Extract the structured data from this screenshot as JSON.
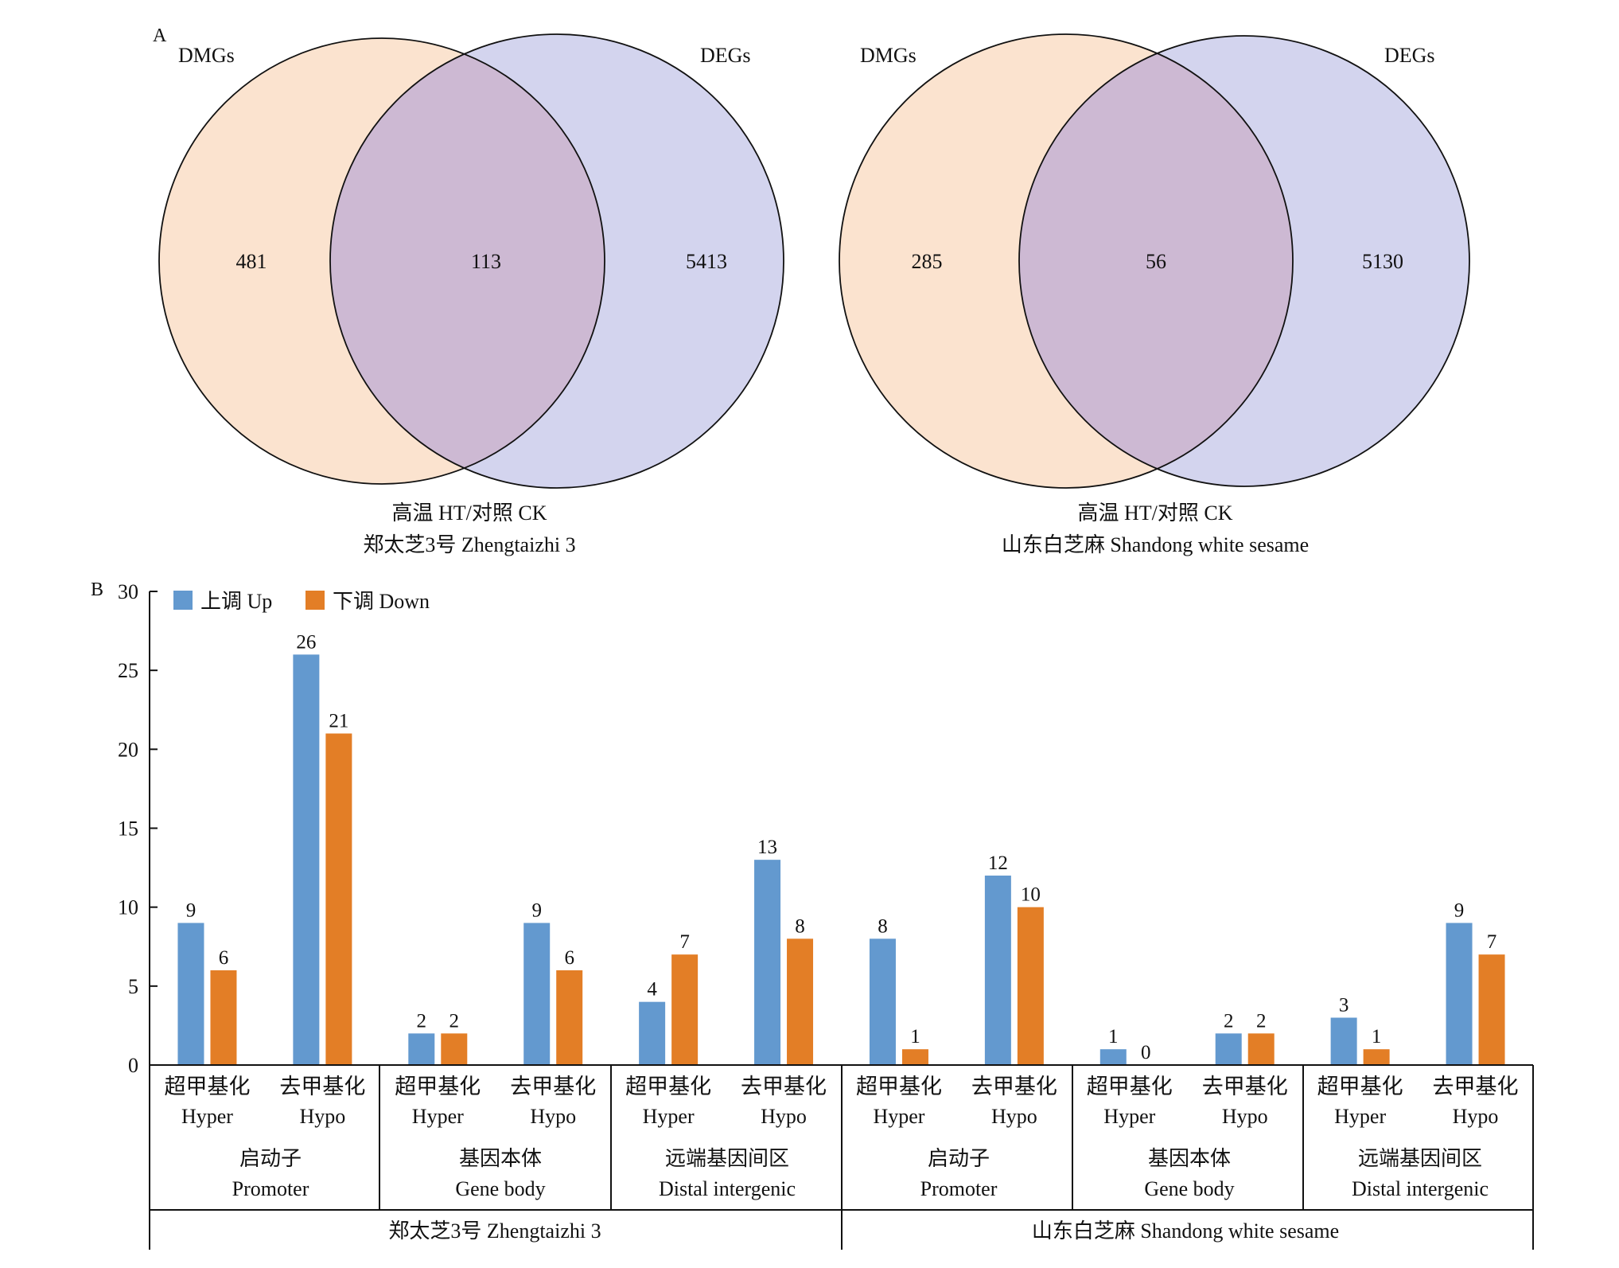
{
  "panel_a": {
    "label": "A",
    "set_left": "DMGs",
    "set_right": "DEGs",
    "venns": [
      {
        "left_only": "481",
        "both": "113",
        "right_only": "5413",
        "caption1": "高温 HT/对照 CK",
        "caption2": "郑太芝3号 Zhengtaizhi 3"
      },
      {
        "left_only": "285",
        "both": "56",
        "right_only": "5130",
        "caption1": "高温 HT/对照 CK",
        "caption2": "山东白芝麻 Shandong white sesame"
      }
    ],
    "colors": {
      "left": "#fbe3cf",
      "right": "#d3d4ee",
      "overlap": "#cdb9d3",
      "stroke": "#111111"
    }
  },
  "panel_b": {
    "label": "B",
    "legend": [
      {
        "label": "上调 Up",
        "color": "#6399cf"
      },
      {
        "label": "下调 Down",
        "color": "#e37e26"
      }
    ],
    "methylation_types": [
      {
        "cn": "超甲基化",
        "en": "Hyper"
      },
      {
        "cn": "去甲基化",
        "en": "Hypo"
      }
    ],
    "regions": [
      {
        "cn": "启动子",
        "en": "Promoter"
      },
      {
        "cn": "基因本体",
        "en": "Gene body"
      },
      {
        "cn": "远端基因间区",
        "en": "Distal intergenic"
      }
    ],
    "cultivars": [
      "郑太芝3号 Zhengtaizhi 3",
      "山东白芝麻 Shandong white sesame"
    ]
  },
  "chart_data": {
    "type": "bar",
    "title": "",
    "xlabel": "",
    "ylabel": "",
    "ylim": [
      0,
      30
    ],
    "yticks": [
      0,
      5,
      10,
      15,
      20,
      25,
      30
    ],
    "grid": false,
    "legend_position": "top-left",
    "categories": [
      "超甲基化 Hyper",
      "去甲基化 Hypo",
      "超甲基化 Hyper",
      "去甲基化 Hypo",
      "超甲基化 Hyper",
      "去甲基化 Hypo",
      "超甲基化 Hyper",
      "去甲基化 Hypo",
      "超甲基化 Hyper",
      "去甲基化 Hypo",
      "超甲基化 Hyper",
      "去甲基化 Hypo"
    ],
    "series": [
      {
        "name": "上调 Up",
        "values": [
          9,
          26,
          2,
          9,
          4,
          13,
          8,
          12,
          1,
          2,
          3,
          9
        ]
      },
      {
        "name": "下调 Down",
        "values": [
          6,
          21,
          2,
          6,
          7,
          8,
          1,
          10,
          0,
          2,
          1,
          7
        ]
      }
    ]
  }
}
